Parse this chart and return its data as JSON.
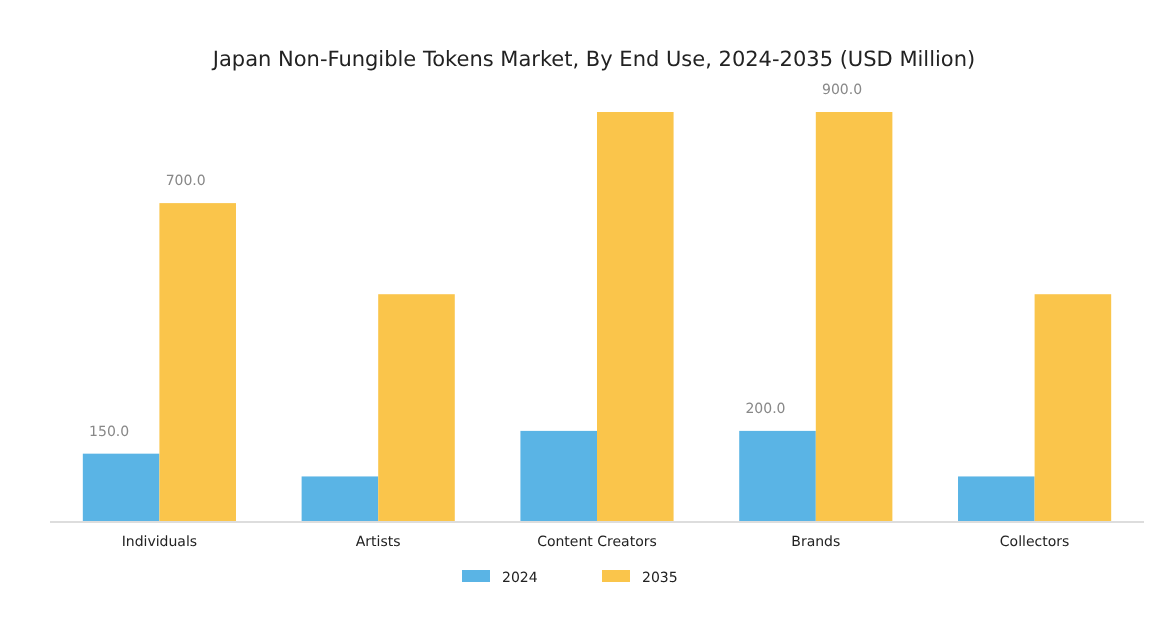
{
  "chart_data": {
    "type": "bar",
    "title": "Japan Non-Fungible Tokens Market, By End Use, 2024-2035 (USD Million)",
    "categories": [
      "Individuals",
      "Artists",
      "Content Creators",
      "Brands",
      "Collectors"
    ],
    "series": [
      {
        "name": "2024",
        "color": "#5ab4e5",
        "values": [
          150,
          100,
          200,
          200,
          100
        ],
        "value_labels": [
          "150.0",
          null,
          null,
          "200.0",
          null
        ]
      },
      {
        "name": "2035",
        "color": "#fac54b",
        "values": [
          700,
          500,
          900,
          900,
          500
        ],
        "value_labels": [
          "700.0",
          null,
          null,
          "900.0",
          null
        ]
      }
    ],
    "legend": "bottom",
    "grid": false
  }
}
